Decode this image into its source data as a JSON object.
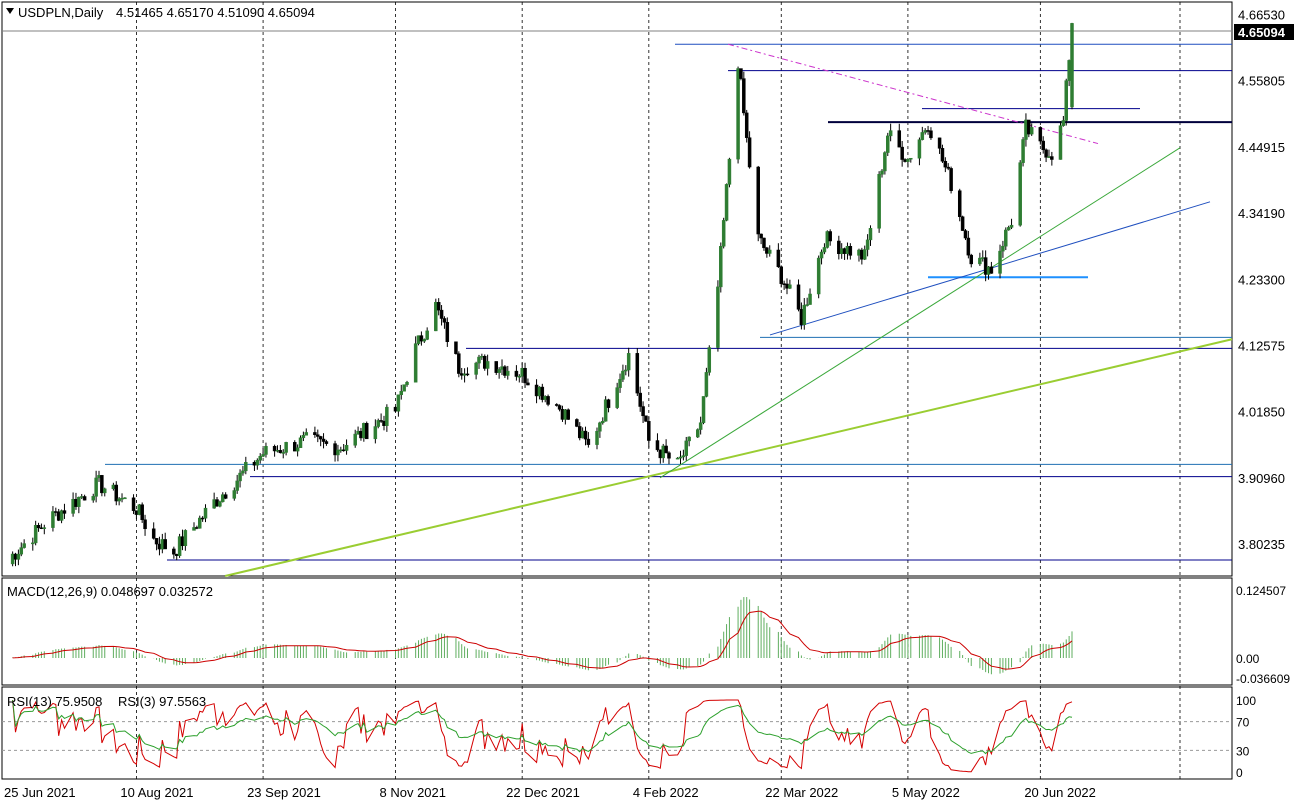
{
  "header": {
    "symbol": "USDPLN,Daily",
    "ohlc": "4.51465 4.65170 4.51090 4.65094"
  },
  "macd_header": "MACD(12,26,9) 0.048697 0.032572",
  "rsi_header": {
    "rsi13": "RSI(13) 75.9508",
    "rsi3": "RSI(3) 97.5563"
  },
  "current_price_label": "4.65094",
  "colors": {
    "up_candle": "#2e7d32",
    "down_candle": "#000000",
    "macd_hist": "#5fae5f",
    "macd_signal": "#cc0000",
    "rsi13": "#2ca02c",
    "rsi3": "#d40000",
    "hline": "#00008b",
    "trend_green": "#9acd32",
    "trend_blue": "#1f4fbf",
    "resistance_dash": "#cc33cc",
    "support_cyan": "#1e90ff"
  },
  "chart_data": [
    {
      "type": "candlestick",
      "title": "USDPLN,Daily",
      "y_ticks": [
        "4.66530",
        "4.55805",
        "4.44915",
        "4.34190",
        "4.23300",
        "4.12575",
        "4.01850",
        "3.90960",
        "3.80235"
      ],
      "x_ticks": [
        "25 Jun 2021",
        "10 Aug 2021",
        "23 Sep 2021",
        "8 Nov 2021",
        "22 Dec 2021",
        "4 Feb 2022",
        "22 Mar 2022",
        "5 May 2022",
        "20 Jun 2022"
      ],
      "ylim": [
        3.75,
        4.676
      ],
      "trend_points": [
        [
          "25 Jun 2021",
          3.77
        ],
        [
          "10 Jul 2021",
          3.84
        ],
        [
          "28 Jul 2021",
          3.9
        ],
        [
          "10 Aug 2021",
          3.86
        ],
        [
          "16 Aug 2021",
          3.81
        ],
        [
          "23 Aug 2021",
          3.79
        ],
        [
          "6 Sep 2021",
          3.87
        ],
        [
          "23 Sep 2021",
          3.95
        ],
        [
          "8 Oct 2021",
          3.97
        ],
        [
          "20 Oct 2021",
          3.96
        ],
        [
          "8 Nov 2021",
          4.02
        ],
        [
          "15 Nov 2021",
          4.12
        ],
        [
          "22 Nov 2021",
          4.19
        ],
        [
          "30 Nov 2021",
          4.09
        ],
        [
          "10 Dec 2021",
          4.1
        ],
        [
          "22 Dec 2021",
          4.08
        ],
        [
          "5 Jan 2022",
          4.02
        ],
        [
          "14 Jan 2022",
          3.96
        ],
        [
          "24 Jan 2022",
          4.07
        ],
        [
          "28 Jan 2022",
          4.11
        ],
        [
          "4 Feb 2022",
          3.97
        ],
        [
          "14 Feb 2022",
          3.93
        ],
        [
          "22 Feb 2022",
          4.0
        ],
        [
          "28 Feb 2022",
          4.22
        ],
        [
          "7 Mar 2022",
          4.59
        ],
        [
          "10 Mar 2022",
          4.46
        ],
        [
          "14 Mar 2022",
          4.3
        ],
        [
          "22 Mar 2022",
          4.24
        ],
        [
          "29 Mar 2022",
          4.17
        ],
        [
          "6 Apr 2022",
          4.3
        ],
        [
          "20 Apr 2022",
          4.27
        ],
        [
          "28 Apr 2022",
          4.47
        ],
        [
          "5 May 2022",
          4.43
        ],
        [
          "12 May 2022",
          4.49
        ],
        [
          "20 May 2022",
          4.39
        ],
        [
          "27 May 2022",
          4.27
        ],
        [
          "3 Jun 2022",
          4.25
        ],
        [
          "10 Jun 2022",
          4.33
        ],
        [
          "15 Jun 2022",
          4.48
        ],
        [
          "20 Jun 2022",
          4.45
        ],
        [
          "24 Jun 2022",
          4.44
        ],
        [
          "28 Jun 2022",
          4.49
        ],
        [
          "1 Jul 2022",
          4.65094
        ]
      ],
      "last_ohlc": {
        "open": 4.51465,
        "high": 4.6517,
        "low": 4.5109,
        "close": 4.65094
      }
    },
    {
      "type": "bar",
      "title": "MACD(12,26,9)",
      "values": {
        "macd": 0.048697,
        "signal": 0.032572
      },
      "y_ticks": [
        "0.124507",
        "0.00",
        "-0.036609"
      ],
      "ylim": [
        -0.036609,
        0.124507
      ]
    },
    {
      "type": "line",
      "title": "RSI",
      "series": [
        {
          "name": "RSI(13)",
          "last": 75.9508
        },
        {
          "name": "RSI(3)",
          "last": 97.5563
        }
      ],
      "y_ticks": [
        "100",
        "70",
        "30",
        "0"
      ],
      "ylim": [
        0,
        100
      ]
    }
  ]
}
